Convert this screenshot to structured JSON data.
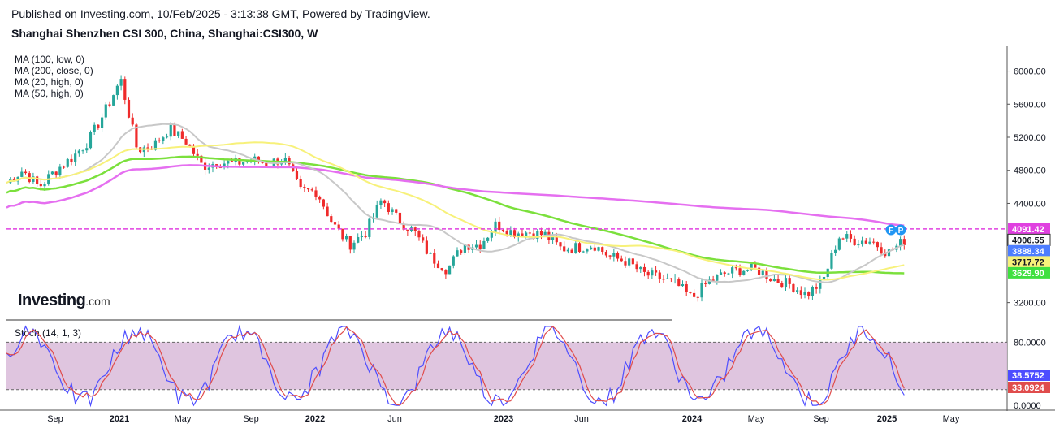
{
  "header": {
    "published": "Published on Investing.com, 10/Feb/2025 - 3:13:38 GMT, Powered by TradingView.",
    "title": "Shanghai Shenzhen CSI 300, China, Shanghai:CSI300, W"
  },
  "legend": {
    "ma_items": [
      "MA (100, low, 0)",
      "MA (200, close, 0)",
      "MA (20, high, 0)",
      "MA (50, high, 0)"
    ],
    "stoch": "Stoch (14, 1, 3)"
  },
  "logo": {
    "brand": "Investing",
    "suffix": ".com",
    "flags": [
      "F",
      "P"
    ]
  },
  "colors": {
    "up": "#26a69a",
    "down": "#ef2b2b",
    "ma100": "#7be03c",
    "ma200": "#e56ff0",
    "ma20": "#c8c8c8",
    "ma50": "#f7f17a",
    "stochK": "#4d4dff",
    "stochD": "#e04c4c",
    "stochBand": "#dcbfdc",
    "hline": "#e040e0"
  },
  "chart_data": [
    {
      "type": "line",
      "title": "Shanghai Shenzhen CSI 300, China, Shanghai:CSI300, W",
      "y_ticks": [
        "6000.00",
        "5600.00",
        "5200.00",
        "4800.00",
        "4400.00",
        "3200.00"
      ],
      "x_ticks": [
        "Sep",
        "2021",
        "May",
        "Sep",
        "2022",
        "Jun",
        "2023",
        "Jun",
        "2024",
        "May",
        "Sep",
        "2025",
        "May"
      ],
      "ylim": [
        3000,
        6300
      ],
      "price_labels": [
        {
          "value": 4091.42,
          "label": "4091.42",
          "color": "#e040e0"
        },
        {
          "value": 4006.55,
          "label": "4006.55",
          "color": "#ffffff"
        },
        {
          "value": 3888.34,
          "label": "3888.34",
          "color": "#4d7dff"
        },
        {
          "value": 3717.72,
          "label": "3717.72",
          "color": "#f7f17a"
        },
        {
          "value": 3629.9,
          "label": "3629.90",
          "color": "#3fe03f"
        }
      ],
      "horizontal_line": 4091.42,
      "dotted_line": 4006.55,
      "close_series": [
        [
          "2020-07",
          4650
        ],
        [
          "2020-08",
          4800
        ],
        [
          "2020-09",
          4600
        ],
        [
          "2020-10",
          4800
        ],
        [
          "2020-11",
          4950
        ],
        [
          "2020-12",
          5150
        ],
        [
          "2021-01",
          5500
        ],
        [
          "2021-02",
          5900
        ],
        [
          "2021-03",
          5050
        ],
        [
          "2021-04",
          5100
        ],
        [
          "2021-05",
          5300
        ],
        [
          "2021-06",
          5150
        ],
        [
          "2021-07",
          4850
        ],
        [
          "2021-08",
          4900
        ],
        [
          "2021-09",
          4880
        ],
        [
          "2021-10",
          4930
        ],
        [
          "2021-11",
          4880
        ],
        [
          "2021-12",
          4950
        ],
        [
          "2022-01",
          4550
        ],
        [
          "2022-02",
          4550
        ],
        [
          "2022-03",
          4150
        ],
        [
          "2022-04",
          3900
        ],
        [
          "2022-05",
          4050
        ],
        [
          "2022-06",
          4450
        ],
        [
          "2022-07",
          4200
        ],
        [
          "2022-08",
          4050
        ],
        [
          "2022-09",
          3750
        ],
        [
          "2022-10",
          3600
        ],
        [
          "2022-11",
          3900
        ],
        [
          "2022-12",
          3900
        ],
        [
          "2023-01",
          4150
        ],
        [
          "2023-02",
          4050
        ],
        [
          "2023-03",
          4050
        ],
        [
          "2023-04",
          4020
        ],
        [
          "2023-05",
          3850
        ],
        [
          "2023-06",
          3870
        ],
        [
          "2023-07",
          3900
        ],
        [
          "2023-08",
          3750
        ],
        [
          "2023-09",
          3700
        ],
        [
          "2023-10",
          3550
        ],
        [
          "2023-11",
          3500
        ],
        [
          "2023-12",
          3430
        ],
        [
          "2024-01",
          3250
        ],
        [
          "2024-02",
          3450
        ],
        [
          "2024-03",
          3550
        ],
        [
          "2024-04",
          3600
        ],
        [
          "2024-05",
          3600
        ],
        [
          "2024-06",
          3480
        ],
        [
          "2024-07",
          3420
        ],
        [
          "2024-08",
          3300
        ],
        [
          "2024-09",
          3450
        ],
        [
          "2024-10",
          4000
        ],
        [
          "2024-11",
          3950
        ],
        [
          "2024-12",
          3950
        ],
        [
          "2025-01",
          3800
        ],
        [
          "2025-02",
          3950
        ]
      ]
    },
    {
      "type": "line",
      "title": "Stoch (14, 1, 3)",
      "y_ticks": [
        "80.0000",
        "0.0000"
      ],
      "ylim": [
        -5,
        102
      ],
      "band": [
        20,
        80
      ],
      "last_values": [
        {
          "label": "38.5752",
          "color": "#4d4dff"
        },
        {
          "label": "33.0924",
          "color": "#e04c4c"
        }
      ]
    }
  ]
}
